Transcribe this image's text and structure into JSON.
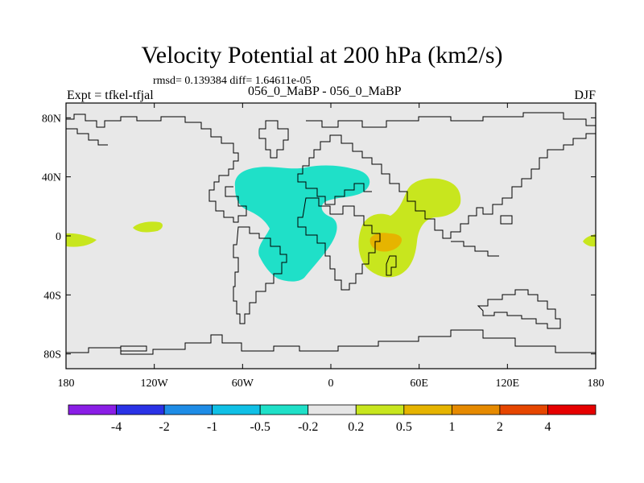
{
  "title": "Velocity Potential at 200 hPa (km2/s)",
  "subtitle": "rmsd= 0.139384 diff= 1.64611e-05",
  "left_label": "Expt = tfkel-tfjal",
  "center_label": "056_0_MaBP - 056_0_MaBP",
  "right_label": "DJF",
  "colors": {
    "land_fill": "#e8e8e8",
    "coast": "#000000",
    "neg_0_5": "#1fe0c8",
    "pos_0_2": "#c8e61e",
    "pos_0_5": "#e6b400"
  },
  "map": {
    "lon_range": [
      -180,
      180
    ],
    "lat_range": [
      -90,
      90
    ],
    "lon_ticks": [
      {
        "value": -180,
        "label": "180"
      },
      {
        "value": -120,
        "label": "120W"
      },
      {
        "value": -60,
        "label": "60W"
      },
      {
        "value": 0,
        "label": "0"
      },
      {
        "value": 60,
        "label": "60E"
      },
      {
        "value": 120,
        "label": "120E"
      },
      {
        "value": 180,
        "label": "180"
      }
    ],
    "lat_ticks": [
      {
        "value": 80,
        "label": "80N"
      },
      {
        "value": 40,
        "label": "40N"
      },
      {
        "value": 0,
        "label": "0"
      },
      {
        "value": -40,
        "label": "40S"
      },
      {
        "value": -80,
        "label": "80S"
      }
    ]
  },
  "colorbar": {
    "colors": [
      "#8a1ee6",
      "#2a32e6",
      "#1e8ce6",
      "#10c0e6",
      "#1fe0c8",
      "#e6e6e6",
      "#c8e61e",
      "#e6b400",
      "#e68a00",
      "#e64600",
      "#e60000"
    ],
    "labels": [
      "-4",
      "-2",
      "-1",
      "-0.5",
      "-0.2",
      "0.2",
      "0.5",
      "1",
      "2",
      "4"
    ]
  }
}
